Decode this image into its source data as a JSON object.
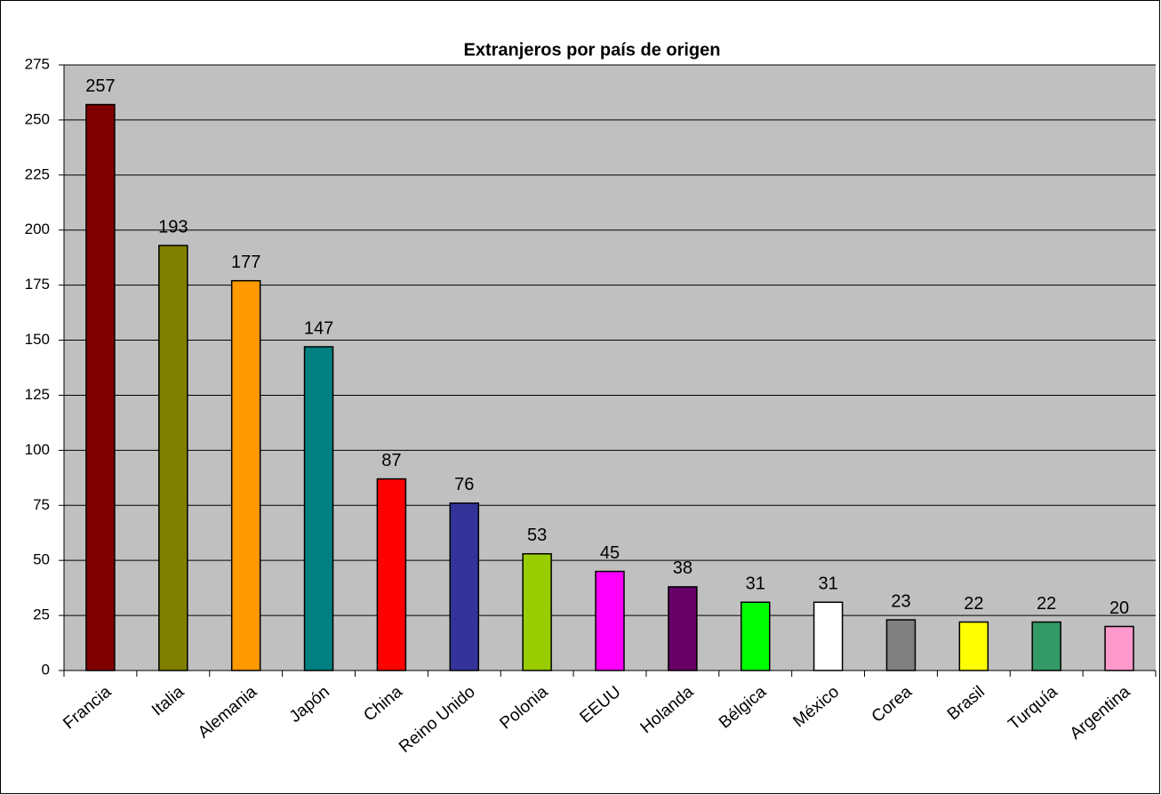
{
  "chart_data": {
    "type": "bar",
    "title": "Extranjeros por país de origen",
    "categories": [
      "Francia",
      "Italia",
      "Alemania",
      "Japón",
      "China",
      "Reino Unido",
      "Polonia",
      "EEUU",
      "Holanda",
      "Bélgica",
      "México",
      "Corea",
      "Brasil",
      "Turquía",
      "Argentina"
    ],
    "values": [
      257,
      193,
      177,
      147,
      87,
      76,
      53,
      45,
      38,
      31,
      31,
      23,
      22,
      22,
      20
    ],
    "colors": [
      "#800000",
      "#808000",
      "#ff9900",
      "#008080",
      "#ff0000",
      "#333399",
      "#99cc00",
      "#ff00ff",
      "#660066",
      "#00ff00",
      "#ffffff",
      "#808080",
      "#ffff00",
      "#339966",
      "#ff99cc"
    ],
    "ylim": [
      0,
      275
    ],
    "yticks": [
      0,
      25,
      50,
      75,
      100,
      125,
      150,
      175,
      200,
      225,
      250,
      275
    ],
    "grid": true
  }
}
